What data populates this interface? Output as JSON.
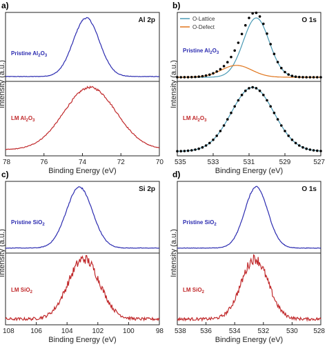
{
  "figure": {
    "panels": [
      {
        "letter": "a)",
        "element": "Al 2p",
        "xlabel": "Binding Energy (eV)",
        "ylabel": "Intensity (a.u.)",
        "xticks": [
          "78",
          "76",
          "74",
          "72",
          "70"
        ],
        "top_label": {
          "prefix": "Pristine Al",
          "sub1": "2",
          "mid": "O",
          "sub2": "3"
        },
        "bottom_label": {
          "prefix": "LM Al",
          "sub1": "2",
          "mid": "O",
          "sub2": "3"
        }
      },
      {
        "letter": "b)",
        "element": "O 1s",
        "xlabel": "Binding Energy (eV)",
        "ylabel": "Intensity (a.u.)",
        "xticks": [
          "535",
          "533",
          "531",
          "529",
          "527"
        ],
        "top_label": {
          "prefix": "Pristine Al",
          "sub1": "2",
          "mid": "O",
          "sub2": "3"
        },
        "bottom_label": {
          "prefix": "LM Al",
          "sub1": "2",
          "mid": "O",
          "sub2": "3"
        },
        "legend": [
          "O-Lattice",
          "O-Defect"
        ]
      },
      {
        "letter": "c)",
        "element": "Si 2p",
        "xlabel": "Binding Energy (eV)",
        "ylabel": "Intensity (a.u.)",
        "xticks": [
          "108",
          "106",
          "104",
          "102",
          "100",
          "98"
        ],
        "top_label": {
          "prefix": "Pristine SiO",
          "sub1": "2",
          "mid": "",
          "sub2": ""
        },
        "bottom_label": {
          "prefix": "LM SiO",
          "sub1": "2",
          "mid": "",
          "sub2": ""
        }
      },
      {
        "letter": "d)",
        "element": "O 1s",
        "xlabel": "Binding Energy (eV)",
        "ylabel": "Intensity (a.u.)",
        "xticks": [
          "538",
          "536",
          "534",
          "532",
          "530",
          "528"
        ],
        "top_label": {
          "prefix": "Pristine SiO",
          "sub1": "2",
          "mid": "",
          "sub2": ""
        },
        "bottom_label": {
          "prefix": "LM SiO",
          "sub1": "2",
          "mid": "",
          "sub2": ""
        }
      }
    ]
  },
  "colors": {
    "pristine": "#2b2bb0",
    "lm": "#c0282a",
    "lattice": "#4a9ab5",
    "defect": "#e0741a",
    "points": "#000000"
  },
  "chart_data": [
    {
      "type": "line",
      "title": "Al 2p",
      "xlabel": "Binding Energy (eV)",
      "ylabel": "Intensity (a.u.)",
      "xlim": [
        78,
        70
      ],
      "x_reversed": true,
      "series": [
        {
          "name": "Pristine Al2O3",
          "peak_center": 73.8,
          "fwhm": 1.6,
          "noise": "low"
        },
        {
          "name": "LM Al2O3",
          "peak_center": 73.6,
          "fwhm": 3.2,
          "noise": "low"
        }
      ]
    },
    {
      "type": "line",
      "title": "O 1s",
      "xlabel": "Binding Energy (eV)",
      "ylabel": "Intensity (a.u.)",
      "xlim": [
        535,
        527
      ],
      "x_reversed": true,
      "series": [
        {
          "name": "Pristine Al2O3 (data points)",
          "peak_center": 530.8,
          "fwhm": 2.2,
          "shoulder_center": 531.7
        },
        {
          "name": "O-Lattice",
          "peak_center": 530.6,
          "fwhm": 1.7
        },
        {
          "name": "O-Defect",
          "peak_center": 531.7,
          "fwhm": 2.0
        },
        {
          "name": "LM Al2O3 (data points)",
          "peak_center": 530.8,
          "fwhm": 2.8
        },
        {
          "name": "LM Al2O3 (fit)",
          "peak_center": 530.8,
          "fwhm": 2.8
        }
      ]
    },
    {
      "type": "line",
      "title": "Si 2p",
      "xlabel": "Binding Energy (eV)",
      "ylabel": "Intensity (a.u.)",
      "xlim": [
        108,
        98
      ],
      "x_reversed": true,
      "series": [
        {
          "name": "Pristine SiO2",
          "peak_center": 103.2,
          "fwhm": 2.0,
          "noise": "low"
        },
        {
          "name": "LM SiO2",
          "peak_center": 102.9,
          "fwhm": 2.4,
          "noise": "high"
        }
      ]
    },
    {
      "type": "line",
      "title": "O 1s",
      "xlabel": "Binding Energy (eV)",
      "ylabel": "Intensity (a.u.)",
      "xlim": [
        538,
        528
      ],
      "x_reversed": true,
      "series": [
        {
          "name": "Pristine SiO2",
          "peak_center": 532.5,
          "fwhm": 1.9,
          "noise": "low"
        },
        {
          "name": "LM SiO2",
          "peak_center": 532.6,
          "fwhm": 2.2,
          "noise": "high"
        }
      ]
    }
  ]
}
